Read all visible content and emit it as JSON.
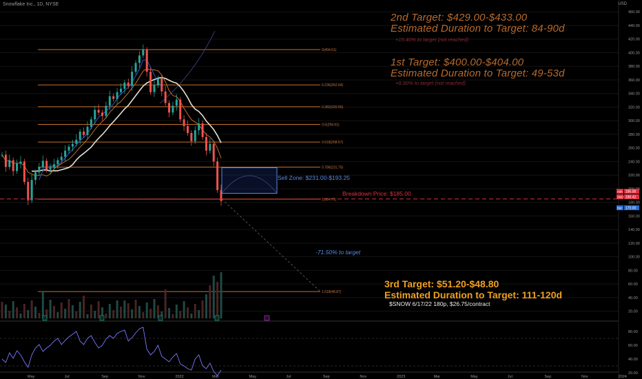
{
  "header": {
    "symbol": "Snowflake Inc., 1D, NYSE",
    "currency": "USD"
  },
  "annotations": {
    "target2_title": "2nd Target: $429.00-$433.00",
    "target2_duration": "Estimated Duration to Target: 84-90d",
    "target2_note": "+15.40% to target (not reached)",
    "target1_title": "1st Target: $400.00-$404.00",
    "target1_duration": "Estimated Duration to Target: 49-53d",
    "target1_note": "+8.90% to target (not reached)",
    "sell_zone": "Sell Zone: $231.00-$193.25",
    "breakdown": "Breakdown Price: $185.00",
    "down_target": "-71.50% to target",
    "target3_title": "3rd Target: $51.20-$48.80",
    "target3_duration": "Estimated Duration to Target: 111-120d",
    "option": "$SNOW 6/17/22 180p, $26.75/contract"
  },
  "colors": {
    "target12": "#b86a2c",
    "target3": "#f0a020",
    "breakdown": "#e03040",
    "sell_zone": "#5a8ae0",
    "fib": "#c8702c",
    "rsi": "#7a78ff"
  },
  "price_tags": [
    {
      "label": "Ask",
      "value": "185.00",
      "color": "#e03040"
    },
    {
      "label": "SNOW",
      "value": "180.42",
      "color": "#e03040"
    },
    {
      "label": "Bid",
      "value": "170.00",
      "color": "#2a6ad0"
    }
  ],
  "chart_data": [
    {
      "type": "candlestick",
      "ylim": [
        0,
        470
      ],
      "yticks": [
        20,
        40,
        60,
        80,
        100,
        120,
        140,
        160,
        180,
        200,
        220,
        240,
        260,
        280,
        300,
        320,
        340,
        360,
        380,
        400,
        420,
        440,
        460
      ],
      "x_ticks": [
        "May",
        "Jul",
        "Sep",
        "Nov",
        "2022",
        "Mar",
        "May",
        "Jul",
        "Sep",
        "Nov",
        "2023",
        "Mar",
        "May",
        "Jul",
        "Sep",
        "Nov",
        "2024"
      ],
      "fib_levels": [
        {
          "label": "0(404.51)",
          "value": 404.51
        },
        {
          "label": "0.236(352.64)",
          "value": 352.64
        },
        {
          "label": "0.382(320.55)",
          "value": 320.55
        },
        {
          "label": "0.5(294.61)",
          "value": 294.61
        },
        {
          "label": "0.618(268.67)",
          "value": 268.67
        },
        {
          "label": "0.786(231.75)",
          "value": 231.75
        },
        {
          "label": "1(184.71)",
          "value": 184.71
        },
        {
          "label": "1.618(48.87)",
          "value": 48.87
        }
      ],
      "price_path": [
        250,
        232,
        242,
        226,
        237,
        240,
        210,
        183,
        213,
        224,
        232,
        241,
        228,
        231,
        236,
        242,
        247,
        256,
        262,
        266,
        272,
        284,
        279,
        291,
        302,
        316,
        312,
        307,
        322,
        336,
        332,
        342,
        347,
        356,
        351,
        372,
        385,
        396,
        404,
        372,
        342,
        352,
        362,
        343,
        326,
        312,
        322,
        331,
        302,
        292,
        282,
        270,
        286,
        296,
        276,
        256,
        266,
        240,
        198,
        182
      ],
      "sell_zone": [
        231.0,
        193.25
      ],
      "breakdown_price": 185.0
    },
    {
      "type": "line",
      "name": "RSI",
      "ylim": [
        0,
        100
      ],
      "yticks": [
        20,
        40,
        60,
        80
      ],
      "levels": [
        30,
        70
      ],
      "values": [
        40,
        35,
        49,
        41,
        52,
        46,
        36,
        28,
        46,
        56,
        61,
        51,
        56,
        60,
        66,
        70,
        61,
        67,
        72,
        76,
        80,
        66,
        61,
        70,
        74,
        64,
        56,
        60,
        69,
        74,
        70,
        77,
        80,
        82,
        66,
        71,
        78,
        84,
        86,
        54,
        46,
        51,
        60,
        44,
        40,
        36,
        43,
        48,
        33,
        30,
        26,
        24,
        40,
        46,
        30,
        26,
        34,
        22,
        16,
        24
      ]
    }
  ]
}
